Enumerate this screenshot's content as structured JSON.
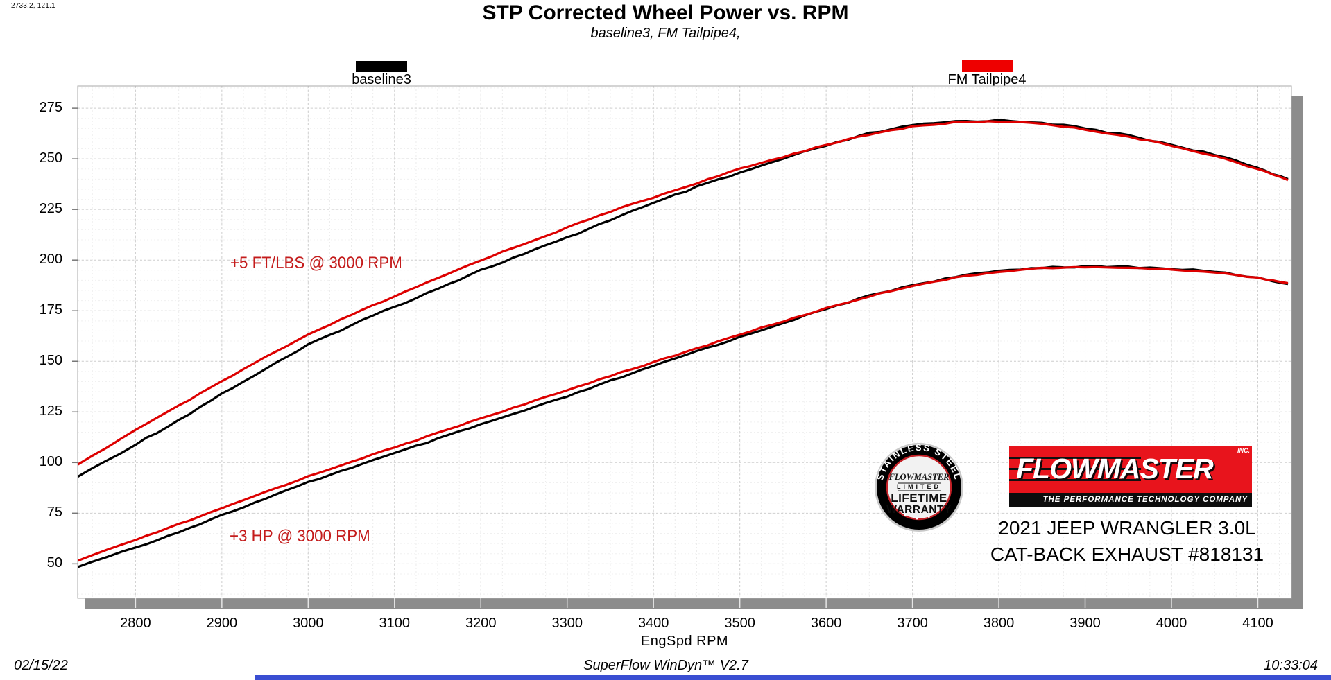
{
  "cursor_readout": "2733.2, 121.1",
  "title": "STP Corrected Wheel Power vs. RPM",
  "subtitle": "baseline3, FM Tailpipe4,",
  "legend": [
    {
      "label": "baseline3",
      "swatch_color": "#000000"
    },
    {
      "label": "FM Tailpipe4",
      "swatch_color": "#ee0000"
    }
  ],
  "annotations": [
    {
      "text": "+5 FT/LBS @ 3000 RPM",
      "color": "#c41c1c"
    },
    {
      "text": "+3 HP @ 3000 RPM",
      "color": "#c41c1c"
    }
  ],
  "status_bar": {
    "date": "02/15/22",
    "app": "SuperFlow WinDyn™ V2.7",
    "time": "10:33:04"
  },
  "logo": {
    "wordmark": "FLOWMASTER",
    "inc": "INC.",
    "tagline": "THE PERFORMANCE TECHNOLOGY COMPANY",
    "vehicle_line1": "2021 JEEP WRANGLER 3.0L",
    "vehicle_line2": "CAT-BACK EXHAUST #818131",
    "red": "#e8141c"
  },
  "badge": {
    "arc_top": "STAINLESS STEEL",
    "brand": "FLOWMASTER",
    "line1": "LIMITED",
    "line2": "LIFETIME",
    "line3": "WARRANTY"
  },
  "chart_data": {
    "type": "line",
    "title": "STP Corrected Wheel Power vs. RPM",
    "xlabel": "EngSpd  RPM",
    "ylabel": "",
    "x_ticks": [
      2800,
      2900,
      3000,
      3100,
      3200,
      3300,
      3400,
      3500,
      3600,
      3700,
      3800,
      3900,
      4000,
      4100
    ],
    "y_ticks": [
      50,
      75,
      100,
      125,
      150,
      175,
      200,
      225,
      250,
      275
    ],
    "x_range": [
      2733,
      4139
    ],
    "y_range": [
      33,
      286
    ],
    "grid": "dashed, minor x every 25 RPM, minor y every 5 units",
    "legend_position": "top, outside plot",
    "rpm": [
      2733,
      2800,
      2850,
      2900,
      2950,
      3000,
      3050,
      3100,
      3150,
      3200,
      3250,
      3300,
      3350,
      3400,
      3450,
      3500,
      3550,
      3600,
      3650,
      3700,
      3750,
      3800,
      3850,
      3900,
      3950,
      4000,
      4050,
      4100,
      4135
    ],
    "series": [
      {
        "name": "baseline3 torque (ft-lbs)",
        "color": "#000000",
        "values": [
          93,
          109,
          121,
          134,
          146,
          158,
          168,
          177,
          186,
          195,
          203,
          211,
          220,
          228,
          236,
          243,
          250,
          256.5,
          262.5,
          266.5,
          268.5,
          269,
          268,
          265,
          261.5,
          257,
          252,
          245.5,
          240
        ]
      },
      {
        "name": "FM Tailpipe4 torque (ft-lbs)",
        "color": "#dd0000",
        "values": [
          99,
          116,
          128,
          140,
          152,
          163,
          173,
          182,
          191,
          200,
          208,
          216,
          224,
          231,
          238,
          245,
          251,
          257,
          262,
          266,
          268,
          268.5,
          267.5,
          264.5,
          261,
          256.5,
          251.5,
          245,
          239.5
        ]
      },
      {
        "name": "baseline3 wheel power (hp)",
        "color": "#000000",
        "values": [
          48.4,
          58.1,
          65.7,
          74.0,
          82.0,
          90.2,
          97.6,
          104.5,
          111.6,
          118.8,
          125.6,
          132.6,
          140.3,
          147.6,
          155.0,
          161.9,
          169.0,
          175.8,
          182.4,
          187.7,
          191.7,
          194.7,
          196.4,
          196.8,
          196.6,
          195.7,
          194.4,
          191.2,
          188.2
        ]
      },
      {
        "name": "FM Tailpipe4 wheel power (hp)",
        "color": "#dd0000",
        "values": [
          51.5,
          61.8,
          69.5,
          77.3,
          85.4,
          93.1,
          100.5,
          107.4,
          114.6,
          121.9,
          128.7,
          135.7,
          142.9,
          149.5,
          156.3,
          163.3,
          169.7,
          176.2,
          182.1,
          187.4,
          191.3,
          194.3,
          196.1,
          196.4,
          196.3,
          195.4,
          193.9,
          191.3,
          188.6
        ]
      }
    ],
    "annotations": [
      "+5 FT/LBS @ 3000 RPM",
      "+3 HP @ 3000 RPM"
    ]
  }
}
